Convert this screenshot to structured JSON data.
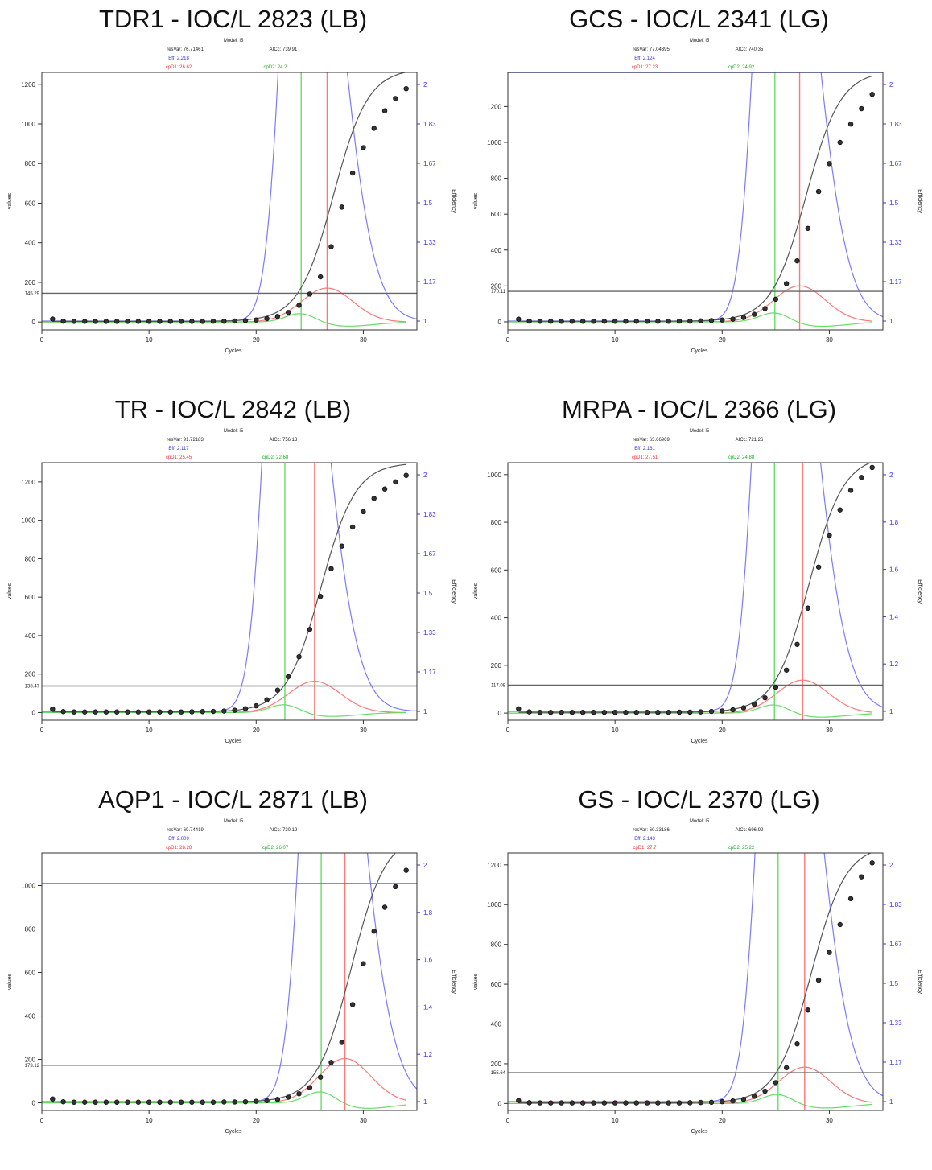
{
  "colors": {
    "efficiency": "#7a7aff",
    "cpD1": "#ff7777",
    "cpD2": "#66dd66",
    "fit": "#555555",
    "threshold": "#666666",
    "eff_axis": "#3333ee"
  },
  "chart_data": [
    {
      "type": "line",
      "title": "TDR1 - IOC/L 2823 (LB)",
      "model": "Model: l5",
      "resVar": "resVar: 76.71461",
      "aicc": "AICc: 739.91",
      "eff": "Eff: 2.218",
      "cpd1": "cpD1: 26.62",
      "cpd2": "cpD2: 24.2",
      "xlabel": "Cycles",
      "ylabel": "values",
      "y2label": "Efficiency",
      "xlim": [
        0,
        35
      ],
      "ylim": [
        -40,
        1260
      ],
      "xticks": [
        0,
        10,
        20,
        30
      ],
      "yticks": [
        0,
        200,
        400,
        600,
        800,
        1000,
        1200
      ],
      "eff_ticks": [
        "1",
        "1.17",
        "1.33",
        "1.5",
        "1.67",
        "1.83",
        "2"
      ],
      "threshold": 145,
      "threshold_label": "145.29",
      "cpD1": 26.62,
      "cpD2": 24.2,
      "plateau": 1280,
      "top_line": false,
      "x": [
        1,
        2,
        3,
        4,
        5,
        6,
        7,
        8,
        9,
        10,
        11,
        12,
        13,
        14,
        15,
        16,
        17,
        18,
        19,
        20,
        21,
        22,
        23,
        24,
        25,
        26,
        27,
        28,
        29,
        30,
        31,
        32,
        33,
        34
      ],
      "values": [
        15,
        4,
        3,
        3,
        3,
        3,
        3,
        3,
        3,
        3,
        3,
        3,
        3,
        3,
        3,
        4,
        4,
        5,
        7,
        10,
        17,
        28,
        48,
        84,
        141,
        228,
        380,
        580,
        752,
        880,
        978,
        1066,
        1128,
        1178
      ]
    },
    {
      "type": "line",
      "title": "GCS - IOC/L 2341 (LG)",
      "model": "Model: l5",
      "resVar": "resVar: 77.04395",
      "aicc": "AICc: 740.35",
      "eff": "Eff: 2.124",
      "cpd1": "cpD1: 27.23",
      "cpd2": "cpD2: 24.92",
      "xlabel": "Cycles",
      "ylabel": "values",
      "y2label": "Efficiency",
      "xlim": [
        0,
        35
      ],
      "ylim": [
        -45,
        1390
      ],
      "xticks": [
        0,
        10,
        20,
        30
      ],
      "yticks": [
        0,
        200,
        400,
        600,
        800,
        1000,
        1200
      ],
      "eff_ticks": [
        "1",
        "1.17",
        "1.33",
        "1.5",
        "1.67",
        "1.83",
        "2"
      ],
      "threshold": 170,
      "threshold_label": "170.11",
      "cpD1": 27.23,
      "cpD2": 24.92,
      "plateau": 1400,
      "top_line": true,
      "x": [
        1,
        2,
        3,
        4,
        5,
        6,
        7,
        8,
        9,
        10,
        11,
        12,
        13,
        14,
        15,
        16,
        17,
        18,
        19,
        20,
        21,
        22,
        23,
        24,
        25,
        26,
        27,
        28,
        29,
        30,
        31,
        32,
        33,
        34
      ],
      "values": [
        15,
        4,
        3,
        3,
        3,
        3,
        3,
        3,
        3,
        3,
        3,
        3,
        3,
        3,
        3,
        4,
        4,
        5,
        7,
        10,
        15,
        24,
        42,
        74,
        126,
        213,
        340,
        521,
        726,
        882,
        1000,
        1102,
        1188,
        1268
      ]
    },
    {
      "type": "line",
      "title": "TR - IOC/L 2842 (LB)",
      "model": "Model: l5",
      "resVar": "resVar: 91.72183",
      "aicc": "AICc: 756.13",
      "eff": "Eff: 2.117",
      "cpd1": "cpD1: 25.45",
      "cpd2": "cpD2: 22.68",
      "xlabel": "Cycles",
      "ylabel": "values",
      "y2label": "Efficiency",
      "xlim": [
        0,
        35
      ],
      "ylim": [
        -40,
        1300
      ],
      "xticks": [
        0,
        10,
        20,
        30
      ],
      "yticks": [
        0,
        200,
        400,
        600,
        800,
        1000,
        1200
      ],
      "eff_ticks": [
        "1",
        "1.17",
        "1.33",
        "1.5",
        "1.67",
        "1.83",
        "2"
      ],
      "threshold": 138,
      "threshold_label": "138.47",
      "cpD1": 25.45,
      "cpD2": 22.68,
      "plateau": 1300,
      "top_line": false,
      "x": [
        1,
        2,
        3,
        4,
        5,
        6,
        7,
        8,
        9,
        10,
        11,
        12,
        13,
        14,
        15,
        16,
        17,
        18,
        19,
        20,
        21,
        22,
        23,
        24,
        25,
        26,
        27,
        28,
        29,
        30,
        31,
        32,
        33,
        34
      ],
      "values": [
        18,
        5,
        3,
        3,
        3,
        3,
        3,
        3,
        3,
        3,
        3,
        3,
        3,
        4,
        5,
        6,
        8,
        12,
        20,
        35,
        66,
        116,
        187,
        290,
        432,
        604,
        748,
        866,
        965,
        1045,
        1114,
        1163,
        1200,
        1234
      ]
    },
    {
      "type": "line",
      "title": "MRPA - IOC/L 2366 (LG)",
      "model": "Model: l5",
      "resVar": "resVar: 63.66969",
      "aicc": "AICc: 721.26",
      "eff": "Eff: 2.161",
      "cpd1": "cpD1: 27.51",
      "cpd2": "cpD2: 24.88",
      "xlabel": "Cycles",
      "ylabel": "values",
      "y2label": "Efficiency",
      "xlim": [
        0,
        35
      ],
      "ylim": [
        -30,
        1050
      ],
      "xticks": [
        0,
        10,
        20,
        30
      ],
      "yticks": [
        0,
        200,
        400,
        600,
        800,
        1000
      ],
      "eff_ticks": [
        "1",
        "1.2",
        "1.4",
        "1.6",
        "1.8",
        "2"
      ],
      "threshold": 117,
      "threshold_label": "117.08",
      "cpD1": 27.51,
      "cpD2": 24.88,
      "plateau": 1080,
      "top_line": false,
      "x": [
        1,
        2,
        3,
        4,
        5,
        6,
        7,
        8,
        9,
        10,
        11,
        12,
        13,
        14,
        15,
        16,
        17,
        18,
        19,
        20,
        21,
        22,
        23,
        24,
        25,
        26,
        27,
        28,
        29,
        30,
        31,
        32,
        33,
        34
      ],
      "values": [
        18,
        5,
        3,
        3,
        3,
        3,
        3,
        3,
        3,
        3,
        3,
        3,
        3,
        3,
        3,
        4,
        4,
        5,
        7,
        9,
        14,
        22,
        37,
        64,
        108,
        180,
        288,
        440,
        612,
        746,
        852,
        934,
        988,
        1030
      ]
    },
    {
      "type": "line",
      "title": "AQP1 - IOC/L 2871 (LB)",
      "model": "Model: l5",
      "resVar": "resVar: 69.74419",
      "aicc": "AICc: 730.19",
      "eff": "Eff: 2.009",
      "cpd1": "cpD1: 28.28",
      "cpd2": "cpD2: 26.07",
      "xlabel": "Cycles",
      "ylabel": "values",
      "y2label": "Efficiency",
      "xlim": [
        0,
        35
      ],
      "ylim": [
        -35,
        1150
      ],
      "xticks": [
        0,
        10,
        20,
        30
      ],
      "yticks": [
        0,
        200,
        400,
        600,
        800,
        1000
      ],
      "eff_ticks": [
        "1",
        "1.2",
        "1.4",
        "1.6",
        "1.8",
        "2"
      ],
      "threshold": 173,
      "threshold_label": "173.12",
      "cpD1": 28.28,
      "cpD2": 26.07,
      "plateau": 1240,
      "top_line": true,
      "x": [
        1,
        2,
        3,
        4,
        5,
        6,
        7,
        8,
        9,
        10,
        11,
        12,
        13,
        14,
        15,
        16,
        17,
        18,
        19,
        20,
        21,
        22,
        23,
        24,
        25,
        26,
        27,
        28,
        29,
        30,
        31,
        32,
        33,
        34
      ],
      "values": [
        18,
        5,
        3,
        3,
        3,
        3,
        3,
        3,
        3,
        3,
        3,
        3,
        3,
        3,
        3,
        3,
        4,
        4,
        5,
        7,
        10,
        16,
        26,
        42,
        70,
        118,
        186,
        278,
        452,
        640,
        790,
        900,
        995,
        1070
      ]
    },
    {
      "type": "line",
      "title": "GS - IOC/L 2370 (LG)",
      "model": "Model: l5",
      "resVar": "resVar: 60.33186",
      "aicc": "AICc: 696.92",
      "eff": "Eff: 2.143",
      "cpd1": "cpD1: 27.7",
      "cpd2": "cpD2: 25.22",
      "xlabel": "Cycles",
      "ylabel": "values",
      "y2label": "Efficiency",
      "xlim": [
        0,
        35
      ],
      "ylim": [
        -35,
        1260
      ],
      "xticks": [
        0,
        10,
        20,
        30
      ],
      "yticks": [
        0,
        200,
        400,
        600,
        800,
        1000,
        1200
      ],
      "eff_ticks": [
        "1",
        "1.17",
        "1.33",
        "1.5",
        "1.67",
        "1.83",
        "2"
      ],
      "threshold": 155,
      "threshold_label": "155.64",
      "cpD1": 27.7,
      "cpD2": 25.22,
      "plateau": 1300,
      "top_line": false,
      "x": [
        1,
        2,
        3,
        4,
        5,
        6,
        7,
        8,
        9,
        10,
        11,
        12,
        13,
        14,
        15,
        16,
        17,
        18,
        19,
        20,
        21,
        22,
        23,
        24,
        25,
        26,
        27,
        28,
        29,
        30,
        31,
        32,
        33,
        34
      ],
      "values": [
        15,
        4,
        3,
        3,
        3,
        3,
        3,
        3,
        3,
        3,
        3,
        3,
        3,
        3,
        3,
        3,
        4,
        5,
        6,
        9,
        13,
        21,
        36,
        62,
        105,
        180,
        300,
        470,
        620,
        760,
        900,
        1030,
        1140,
        1210
      ]
    }
  ]
}
